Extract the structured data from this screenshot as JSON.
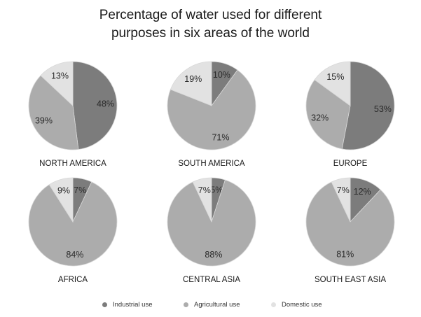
{
  "title_lines": [
    "Percentage of water used for different",
    "purposes in six areas of the world"
  ],
  "colors": {
    "Industrial use": "#7c7c7c",
    "Agricultural use": "#acacac",
    "Domestic use": "#e2e2e2",
    "edge": "#d8d8d8"
  },
  "chart_data": [
    {
      "type": "pie",
      "title": "NORTH AMERICA",
      "categories": [
        "Industrial use",
        "Agricultural use",
        "Domestic use"
      ],
      "values": [
        48,
        39,
        13
      ],
      "labels": [
        "48%",
        "39%",
        "13%"
      ]
    },
    {
      "type": "pie",
      "title": "SOUTH AMERICA",
      "categories": [
        "Industrial use",
        "Agricultural use",
        "Domestic use"
      ],
      "values": [
        10,
        71,
        19
      ],
      "labels": [
        "10%",
        "71%",
        "19%"
      ]
    },
    {
      "type": "pie",
      "title": "EUROPE",
      "categories": [
        "Industrial use",
        "Agricultural use",
        "Domestic use"
      ],
      "values": [
        53,
        32,
        15
      ],
      "labels": [
        "53%",
        "32%",
        "15%"
      ]
    },
    {
      "type": "pie",
      "title": "AFRICA",
      "categories": [
        "Industrial use",
        "Agricultural use",
        "Domestic use"
      ],
      "values": [
        7,
        84,
        9
      ],
      "labels": [
        "7%",
        "84%",
        "9%"
      ]
    },
    {
      "type": "pie",
      "title": "CENTRAL ASIA",
      "categories": [
        "Industrial use",
        "Agricultural use",
        "Domestic use"
      ],
      "values": [
        5,
        88,
        7
      ],
      "labels": [
        "5%",
        "88%",
        "7%"
      ]
    },
    {
      "type": "pie",
      "title": "SOUTH EAST ASIA",
      "categories": [
        "Industrial use",
        "Agricultural use",
        "Domestic use"
      ],
      "values": [
        12,
        81,
        7
      ],
      "labels": [
        "12%",
        "81%",
        "7%"
      ]
    }
  ],
  "legend": {
    "placement": "bottom",
    "items": [
      "Industrial use",
      "Agricultural use",
      "Domestic use"
    ]
  }
}
